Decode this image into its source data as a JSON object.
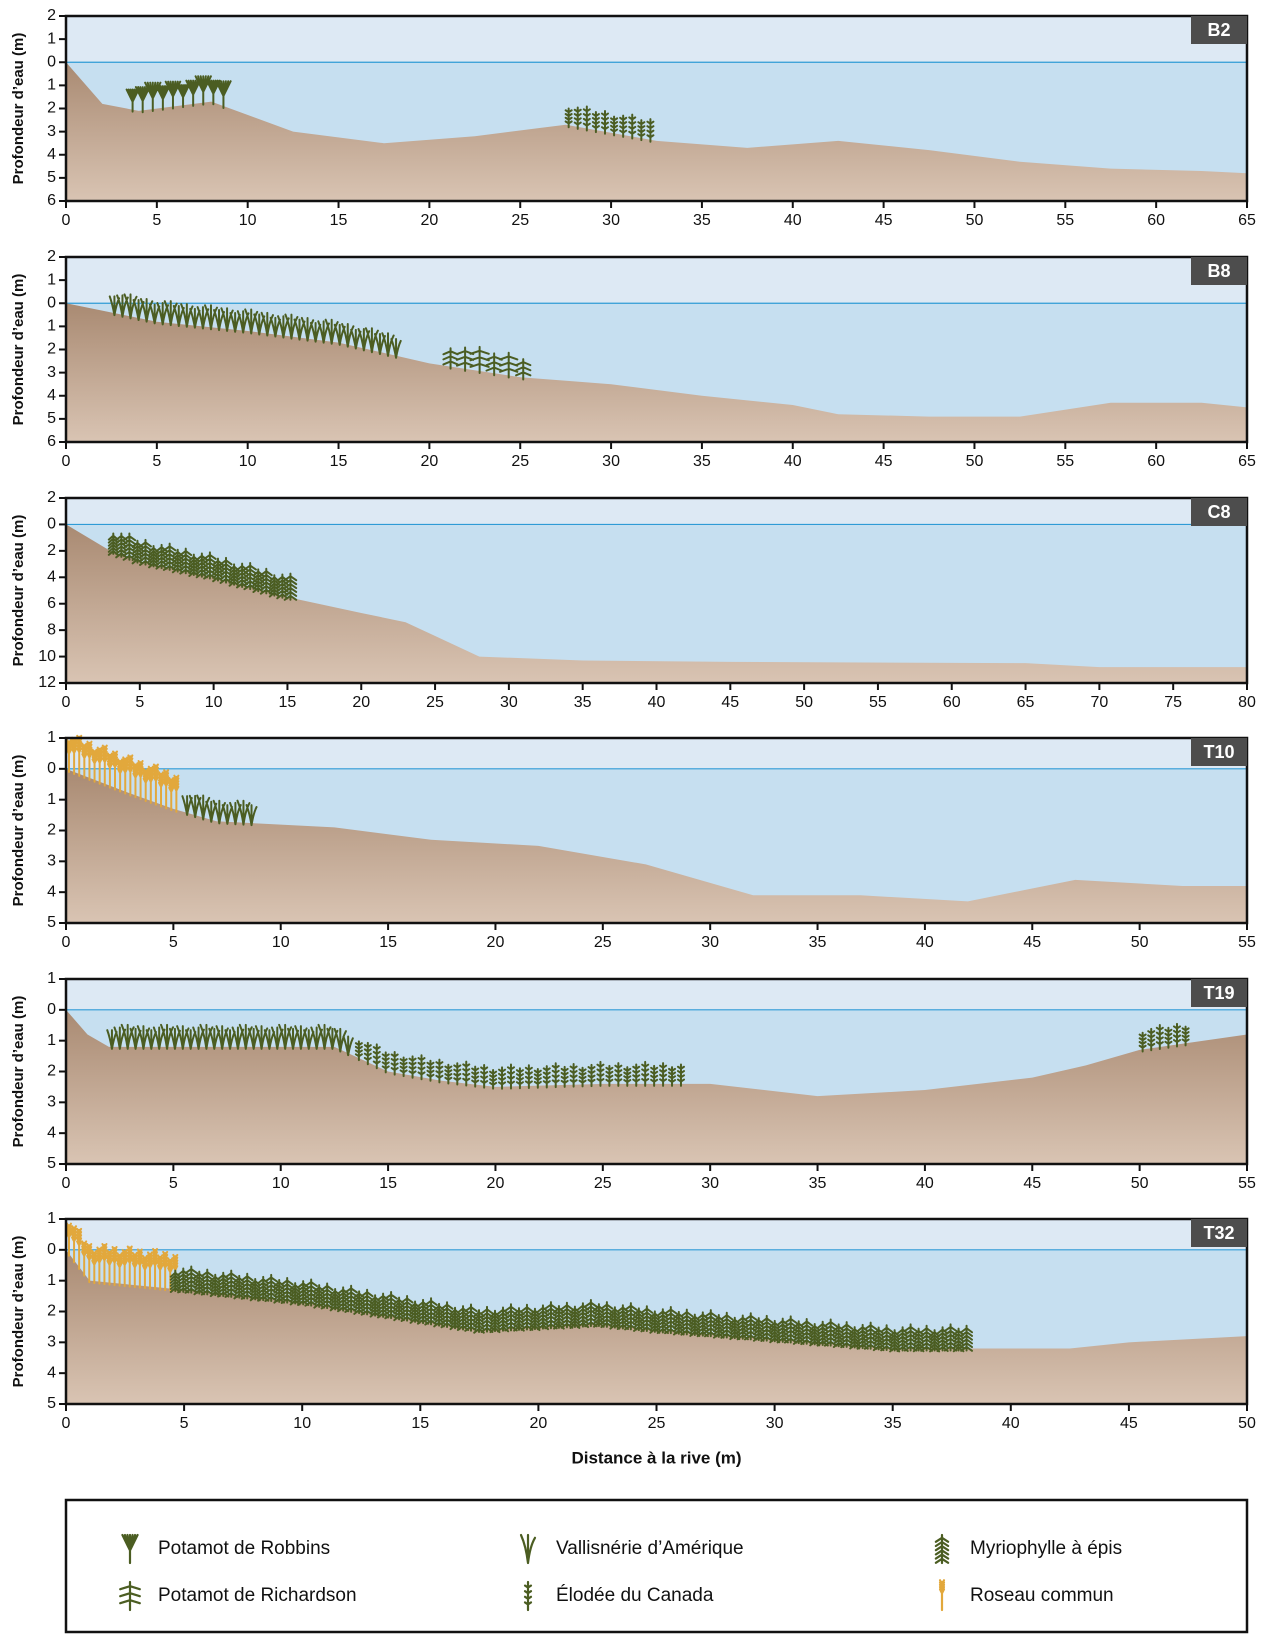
{
  "chart_data": [
    {
      "type": "area",
      "label": "B2",
      "ylabel": "Profondeur d’eau (m)",
      "xlim": [
        0,
        65
      ],
      "xticks": [
        0,
        5,
        10,
        15,
        20,
        25,
        30,
        35,
        40,
        45,
        50,
        55,
        60,
        65
      ],
      "ylim": [
        -2,
        6
      ],
      "yticks": [
        {
          "value": -2,
          "label": "2"
        },
        {
          "value": -1,
          "label": "1"
        },
        0,
        1,
        2,
        3,
        4,
        5,
        6
      ],
      "x": [
        0,
        2,
        4,
        8,
        12.5,
        17.5,
        22.5,
        27.5,
        32.5,
        37.5,
        42.5,
        47.5,
        52.5,
        57.5,
        62.5,
        65
      ],
      "values": [
        0,
        1.8,
        2.1,
        1.7,
        3.0,
        3.5,
        3.2,
        2.7,
        3.4,
        3.7,
        3.4,
        3.8,
        4.3,
        4.6,
        4.7,
        4.8
      ],
      "vegetation": [
        {
          "species": "Potamot de Robbins",
          "x": [
            3.5,
            8.5
          ]
        },
        {
          "species": "Élodée du Canada",
          "x": [
            27.5,
            32
          ]
        }
      ]
    },
    {
      "type": "area",
      "label": "B8",
      "ylabel": "Profondeur d’eau (m)",
      "xlim": [
        0,
        65
      ],
      "xticks": [
        0,
        5,
        10,
        15,
        20,
        25,
        30,
        35,
        40,
        45,
        50,
        55,
        60,
        65
      ],
      "ylim": [
        -2,
        6
      ],
      "yticks": [
        {
          "value": -2,
          "label": "2"
        },
        {
          "value": -1,
          "label": "1"
        },
        0,
        1,
        2,
        3,
        4,
        5,
        6
      ],
      "x": [
        0,
        5,
        10,
        15,
        20,
        25,
        30,
        35,
        40,
        42.5,
        47.5,
        52.5,
        57.5,
        62.5,
        65
      ],
      "values": [
        0,
        0.8,
        1.2,
        1.7,
        2.6,
        3.2,
        3.5,
        4.0,
        4.4,
        4.8,
        4.9,
        4.9,
        4.3,
        4.3,
        4.5
      ],
      "vegetation": [
        {
          "species": "Vallisnérie d’Amérique",
          "x": [
            2.5,
            18
          ]
        },
        {
          "species": "Potamot de Richardson",
          "x": [
            21,
            25
          ]
        }
      ]
    },
    {
      "type": "area",
      "label": "C8",
      "ylabel": "Profondeur d’eau (m)",
      "xlim": [
        0,
        80
      ],
      "xticks": [
        0,
        5,
        10,
        15,
        20,
        25,
        30,
        35,
        40,
        45,
        50,
        55,
        60,
        65,
        70,
        75,
        80
      ],
      "ylim": [
        -2,
        12
      ],
      "yticks": [
        {
          "value": -2,
          "label": "2"
        },
        0,
        2,
        4,
        6,
        8,
        10,
        12
      ],
      "x": [
        0,
        3,
        5,
        10,
        15,
        20,
        23,
        28,
        35,
        45,
        65,
        70,
        80
      ],
      "values": [
        0,
        2,
        2.8,
        4,
        5.5,
        6.7,
        7.4,
        10,
        10.3,
        10.4,
        10.5,
        10.8,
        10.8
      ],
      "vegetation": [
        {
          "species": "Myriophylle à épis",
          "x": [
            3,
            15
          ]
        }
      ]
    },
    {
      "type": "area",
      "label": "T10",
      "ylabel": "Profondeur d’eau (m)",
      "xlim": [
        0,
        55
      ],
      "xticks": [
        0,
        5,
        10,
        15,
        20,
        25,
        30,
        35,
        40,
        45,
        50,
        55
      ],
      "ylim": [
        -1,
        5
      ],
      "yticks": [
        {
          "value": -1,
          "label": "1"
        },
        0,
        1,
        2,
        3,
        4,
        5
      ],
      "x": [
        0,
        3,
        5,
        7,
        12.5,
        17,
        22,
        27,
        32,
        37,
        42,
        47,
        52,
        55
      ],
      "values": [
        0,
        0.8,
        1.3,
        1.7,
        1.9,
        2.3,
        2.5,
        3.1,
        4.1,
        4.1,
        4.3,
        3.6,
        3.8,
        3.8
      ],
      "vegetation": [
        {
          "species": "Roseau commun",
          "x": [
            0,
            5
          ]
        },
        {
          "species": "Vallisnérie d’Amérique",
          "x": [
            5.5,
            8.5
          ]
        }
      ]
    },
    {
      "type": "area",
      "label": "T19",
      "ylabel": "Profondeur d’eau (m)",
      "xlim": [
        0,
        55
      ],
      "xticks": [
        0,
        5,
        10,
        15,
        20,
        25,
        30,
        35,
        40,
        45,
        50,
        55
      ],
      "ylim": [
        -1,
        5
      ],
      "yticks": [
        {
          "value": -1,
          "label": "1"
        },
        0,
        1,
        2,
        3,
        4,
        5
      ],
      "x": [
        0,
        1,
        2,
        5,
        10,
        12.5,
        15,
        17.5,
        20,
        25,
        30,
        35,
        40,
        45,
        47.5,
        50,
        55
      ],
      "values": [
        0,
        0.8,
        1.2,
        1.2,
        1.2,
        1.2,
        2.0,
        2.3,
        2.5,
        2.4,
        2.4,
        2.8,
        2.6,
        2.2,
        1.8,
        1.3,
        0.8
      ],
      "vegetation": [
        {
          "species": "Vallisnérie d’Amérique",
          "x": [
            2,
            13
          ]
        },
        {
          "species": "Élodée du Canada",
          "x": [
            13.5,
            28.5
          ]
        },
        {
          "species": "Élodée du Canada",
          "x": [
            50,
            52
          ]
        }
      ]
    },
    {
      "type": "area",
      "label": "T32",
      "ylabel": "Profondeur d’eau (m)",
      "xlabel": "Distance à la rive (m)",
      "xlim": [
        0,
        50
      ],
      "xticks": [
        0,
        5,
        10,
        15,
        20,
        25,
        30,
        35,
        40,
        45,
        50
      ],
      "ylim": [
        -1,
        5
      ],
      "yticks": [
        {
          "value": -1,
          "label": "1"
        },
        0,
        1,
        2,
        3,
        4,
        5
      ],
      "x": [
        0,
        1,
        5,
        10,
        15,
        17.5,
        20,
        22.5,
        25,
        30,
        35,
        40,
        42.5,
        45,
        50
      ],
      "values": [
        0,
        1.0,
        1.3,
        1.7,
        2.3,
        2.6,
        2.5,
        2.4,
        2.6,
        2.9,
        3.2,
        3.2,
        3.2,
        3.0,
        2.8
      ],
      "vegetation": [
        {
          "species": "Roseau commun",
          "x": [
            0,
            4.5
          ]
        },
        {
          "species": "Myriophylle à épis",
          "x": [
            4.5,
            38
          ]
        }
      ]
    }
  ],
  "legend": [
    {
      "name": "Potamot de Robbins",
      "color": "#4b5d22"
    },
    {
      "name": "Potamot de Richardson",
      "color": "#4b5d22"
    },
    {
      "name": "Vallisnérie d’Amérique",
      "color": "#4b5d22"
    },
    {
      "name": "Élodée du Canada",
      "color": "#4b5d22"
    },
    {
      "name": "Myriophylle à épis",
      "color": "#4b5d22"
    },
    {
      "name": "Roseau commun",
      "color": "#e2a83c"
    }
  ]
}
